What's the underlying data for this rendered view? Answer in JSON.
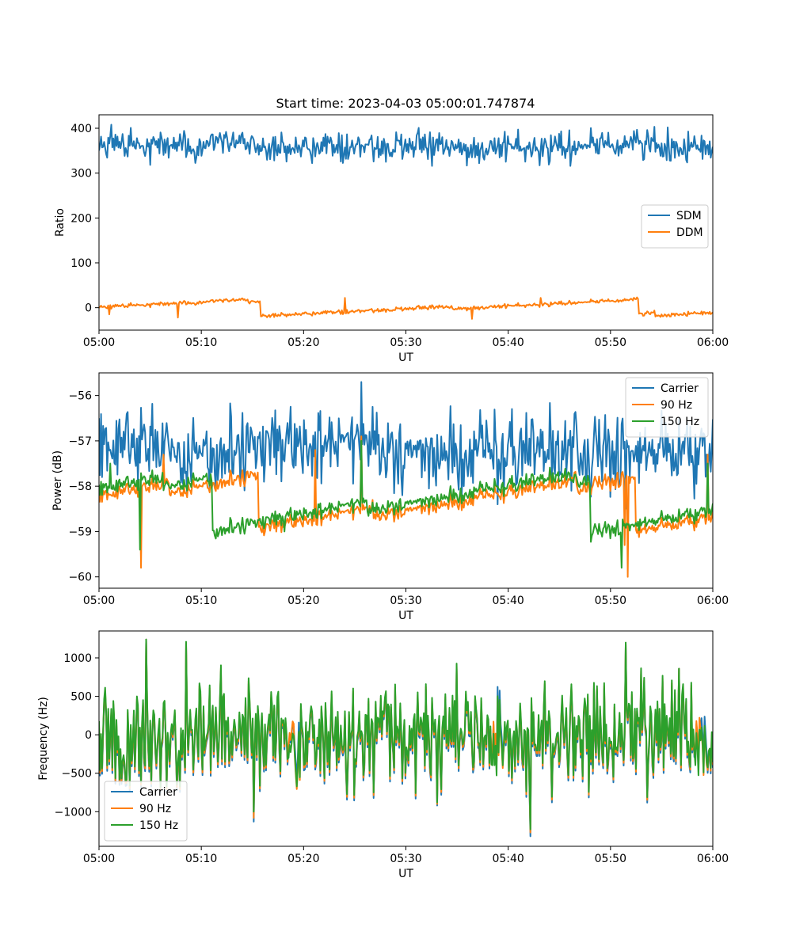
{
  "figure": {
    "title": "Start time: 2023-04-03 05:00:01.747874"
  },
  "colors": {
    "blue": "#1f77b4",
    "orange": "#ff7f0e",
    "green": "#2ca02c"
  },
  "chart_data": [
    {
      "type": "line",
      "title": "Start time: 2023-04-03 05:00:01.747874",
      "xlabel": "UT",
      "ylabel": "Ratio",
      "xlim": [
        "05:00",
        "06:00"
      ],
      "xticks": [
        "05:00",
        "05:10",
        "05:20",
        "05:30",
        "05:40",
        "05:50",
        "06:00"
      ],
      "ylim": [
        -50,
        430
      ],
      "yticks": [
        0,
        100,
        200,
        300,
        400
      ],
      "legend_position": "center-right",
      "grid": false,
      "series": [
        {
          "name": "SDM",
          "color": "#1f77b4",
          "center": 360,
          "amplitude": 28,
          "points": 600,
          "spikes": [
            [
              1.2,
              408
            ],
            [
              23.3,
              345
            ],
            [
              32.6,
              316
            ],
            [
              42.3,
              337
            ],
            [
              46.1,
              316
            ],
            [
              55.6,
              402
            ]
          ]
        },
        {
          "name": "DDM",
          "color": "#ff7f0e",
          "center": 0,
          "amplitude": 16,
          "points": 600,
          "spikes": [
            [
              1.0,
              -15
            ],
            [
              7.7,
              -22
            ],
            [
              24.0,
              22
            ],
            [
              36.5,
              -25
            ],
            [
              43.2,
              22
            ],
            [
              52.7,
              20
            ]
          ]
        }
      ]
    },
    {
      "type": "line",
      "xlabel": "UT",
      "ylabel": "Power (dB)",
      "xlim": [
        "05:00",
        "06:00"
      ],
      "xticks": [
        "05:00",
        "05:10",
        "05:20",
        "05:30",
        "05:40",
        "05:50",
        "06:00"
      ],
      "ylim": [
        -60.25,
        -55.5
      ],
      "yticks": [
        -56,
        -57,
        -58,
        -59,
        -60
      ],
      "legend_position": "upper-right",
      "grid": false,
      "series": [
        {
          "name": "Carrier",
          "color": "#1f77b4",
          "center": -57.2,
          "amplitude": 0.7,
          "points": 600,
          "spikes": [
            [
              0.0,
              -56.5
            ],
            [
              25.6,
              -55.7
            ],
            [
              29.6,
              -58.2
            ],
            [
              39.0,
              -58.4
            ],
            [
              46.2,
              -58.1
            ],
            [
              51.5,
              -58.5
            ],
            [
              55.4,
              -56.6
            ]
          ]
        },
        {
          "name": "90 Hz",
          "color": "#ff7f0e",
          "center": -58.35,
          "amplitude": 0.6,
          "points": 600,
          "spikes": [
            [
              4.1,
              -59.8
            ],
            [
              6.3,
              -57.3
            ],
            [
              21.1,
              -57.2
            ],
            [
              25.6,
              -56.9
            ],
            [
              51.4,
              -59.3
            ],
            [
              51.7,
              -60.0
            ],
            [
              59.5,
              -57.3
            ]
          ]
        },
        {
          "name": "150 Hz",
          "color": "#2ca02c",
          "center": -58.35,
          "amplitude": 0.6,
          "points": 600,
          "spikes": [
            [
              1.1,
              -57.5
            ],
            [
              4.0,
              -59.4
            ],
            [
              18.1,
              -59.0
            ],
            [
              25.6,
              -57.0
            ],
            [
              51.1,
              -59.8
            ],
            [
              59.5,
              -57.5
            ]
          ]
        }
      ]
    },
    {
      "type": "line",
      "xlabel": "UT",
      "ylabel": "Frequency (Hz)",
      "xlim": [
        "05:00",
        "06:00"
      ],
      "xticks": [
        "05:00",
        "05:10",
        "05:20",
        "05:30",
        "05:40",
        "05:50",
        "06:00"
      ],
      "ylim": [
        -1450,
        1350
      ],
      "yticks": [
        1000,
        500,
        0,
        -500,
        -1000
      ],
      "legend_position": "lower-left",
      "grid": false,
      "series": [
        {
          "name": "Carrier",
          "color": "#1f77b4",
          "center": 0,
          "amplitude": 550,
          "offset": -60,
          "points": 600,
          "spikes": [
            [
              4.6,
              1240
            ],
            [
              8.5,
              1200
            ],
            [
              15.1,
              -1130
            ],
            [
              33.1,
              -920
            ],
            [
              42.2,
              -1320
            ],
            [
              51.5,
              1180
            ],
            [
              56.7,
              860
            ]
          ]
        },
        {
          "name": "90 Hz",
          "color": "#ff7f0e",
          "center": 0,
          "amplitude": 550,
          "offset": -30,
          "points": 600,
          "spikes": [
            [
              4.6,
              1240
            ],
            [
              8.5,
              1200
            ],
            [
              15.1,
              -1080
            ],
            [
              33.1,
              -900
            ],
            [
              42.2,
              -1270
            ],
            [
              51.5,
              1180
            ],
            [
              56.7,
              860
            ]
          ]
        },
        {
          "name": "150 Hz",
          "color": "#2ca02c",
          "center": 0,
          "amplitude": 550,
          "offset": 0,
          "points": 600,
          "spikes": [
            [
              4.6,
              1240
            ],
            [
              8.5,
              1210
            ],
            [
              15.1,
              -1000
            ],
            [
              33.1,
              -880
            ],
            [
              42.2,
              -1230
            ],
            [
              51.5,
              1200
            ],
            [
              56.7,
              860
            ]
          ]
        }
      ]
    }
  ]
}
